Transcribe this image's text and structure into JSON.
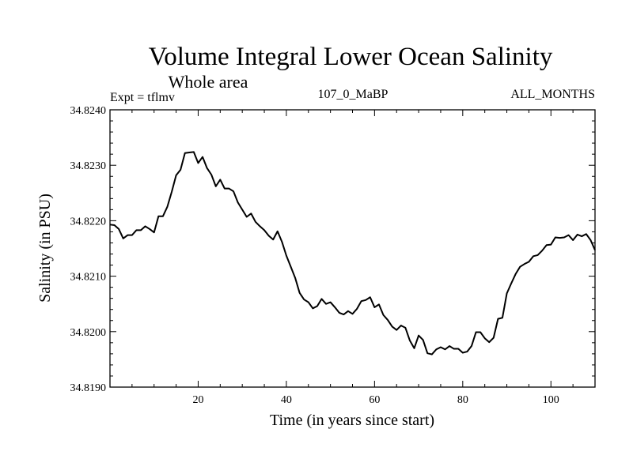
{
  "header": {
    "title": "Volume Integral Lower Ocean Salinity",
    "subtitle": "Whole area",
    "expt": "Expt = tflmv",
    "run_id": "107_0_MaBP",
    "period": "ALL_MONTHS"
  },
  "chart_data": {
    "type": "line",
    "title": "Volume Integral Lower Ocean Salinity",
    "subtitle": "Whole area",
    "xlabel": "Time (in years since start)",
    "ylabel": "Salinity (in PSU)",
    "xlim": [
      0,
      110
    ],
    "ylim": [
      34.819,
      34.824
    ],
    "x_ticks": [
      20,
      40,
      60,
      80,
      100
    ],
    "y_ticks": [
      "34.8190",
      "34.8200",
      "34.8210",
      "34.8220",
      "34.8230",
      "34.8240"
    ],
    "grid": false,
    "series": [
      {
        "name": "salinity",
        "color": "#000000",
        "x": [
          0,
          1,
          2,
          3,
          4,
          5,
          6,
          7,
          8,
          9,
          10,
          11,
          12,
          13,
          14,
          15,
          16,
          17,
          18,
          19,
          20,
          21,
          22,
          23,
          24,
          25,
          26,
          27,
          28,
          29,
          30,
          31,
          32,
          33,
          34,
          35,
          36,
          37,
          38,
          39,
          40,
          41,
          42,
          43,
          44,
          45,
          46,
          47,
          48,
          49,
          50,
          51,
          52,
          53,
          54,
          55,
          56,
          57,
          58,
          59,
          60,
          61,
          62,
          63,
          64,
          65,
          66,
          67,
          68,
          69,
          70,
          71,
          72,
          73,
          74,
          75,
          76,
          77,
          78,
          79,
          80,
          81,
          82,
          83,
          84,
          85,
          86,
          87,
          88,
          89,
          90,
          91,
          92,
          93,
          94,
          95,
          96,
          97,
          98,
          99,
          100,
          101,
          102,
          103,
          104,
          105,
          106,
          107,
          108,
          109,
          110
        ],
        "values": [
          34.82193,
          34.82192,
          34.82185,
          34.82168,
          34.82174,
          34.82174,
          34.82183,
          34.82183,
          34.8219,
          34.82185,
          34.82179,
          34.82208,
          34.82208,
          34.82225,
          34.82252,
          34.82282,
          34.82292,
          34.82322,
          34.82323,
          34.82324,
          34.82304,
          34.82315,
          34.82295,
          34.82283,
          34.82262,
          34.82274,
          34.82258,
          34.82258,
          34.82253,
          34.82233,
          34.8222,
          34.82207,
          34.82213,
          34.82198,
          34.8219,
          34.82183,
          34.82173,
          34.82166,
          34.82181,
          34.82162,
          34.82137,
          34.82117,
          34.82097,
          34.8207,
          34.82058,
          34.82053,
          34.82042,
          34.82046,
          34.82059,
          34.8205,
          34.82053,
          34.82044,
          34.82034,
          34.82031,
          34.82037,
          34.82032,
          34.82041,
          34.82055,
          34.82057,
          34.82062,
          34.82044,
          34.82049,
          34.8203,
          34.82021,
          34.82009,
          34.82003,
          34.82011,
          34.82007,
          34.81984,
          34.8197,
          34.81993,
          34.81985,
          34.81961,
          34.81959,
          34.81968,
          34.81972,
          34.81968,
          34.81974,
          34.81969,
          34.81969,
          34.81962,
          34.81964,
          34.81974,
          34.81999,
          34.81999,
          34.81988,
          34.81981,
          34.81989,
          34.82023,
          34.82025,
          34.82069,
          34.82087,
          34.82104,
          34.82117,
          34.82122,
          34.82126,
          34.82136,
          34.82138,
          34.82146,
          34.82156,
          34.82157,
          34.8217,
          34.82169,
          34.8217,
          34.82174,
          34.82165,
          34.82175,
          34.82172,
          34.82176,
          34.82165,
          34.82147
        ]
      }
    ]
  }
}
